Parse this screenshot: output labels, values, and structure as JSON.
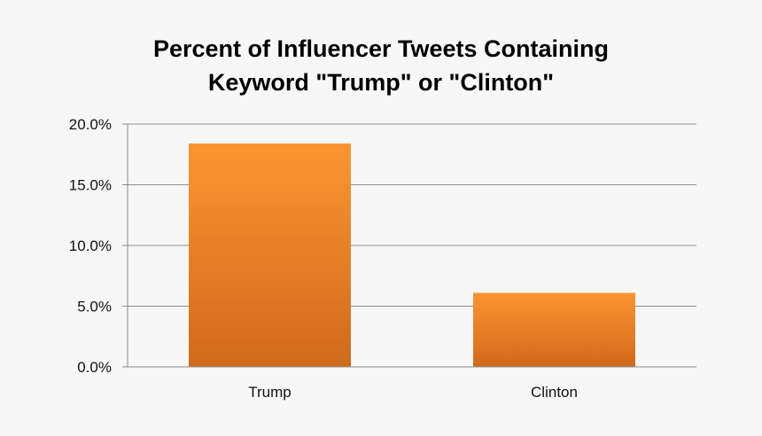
{
  "chart_data": {
    "type": "bar",
    "title_lines": [
      "Percent of Influencer Tweets Containing",
      "Keyword \"Trump\" or \"Clinton\""
    ],
    "categories": [
      "Trump",
      "Clinton"
    ],
    "values": [
      18.4,
      6.1
    ],
    "ylim": [
      0,
      20
    ],
    "y_ticks": [
      0,
      5,
      10,
      15,
      20
    ],
    "y_tick_labels": [
      "0.0%",
      "5.0%",
      "10.0%",
      "15.0%",
      "20.0%"
    ],
    "xlabel": "",
    "ylabel": "",
    "grid": true,
    "legend": "none",
    "colors": {
      "bar_top": "#fb9532",
      "bar_bottom": "#d06a1c",
      "grid": "#8c8c8c",
      "background": "#f7f7f7"
    }
  }
}
